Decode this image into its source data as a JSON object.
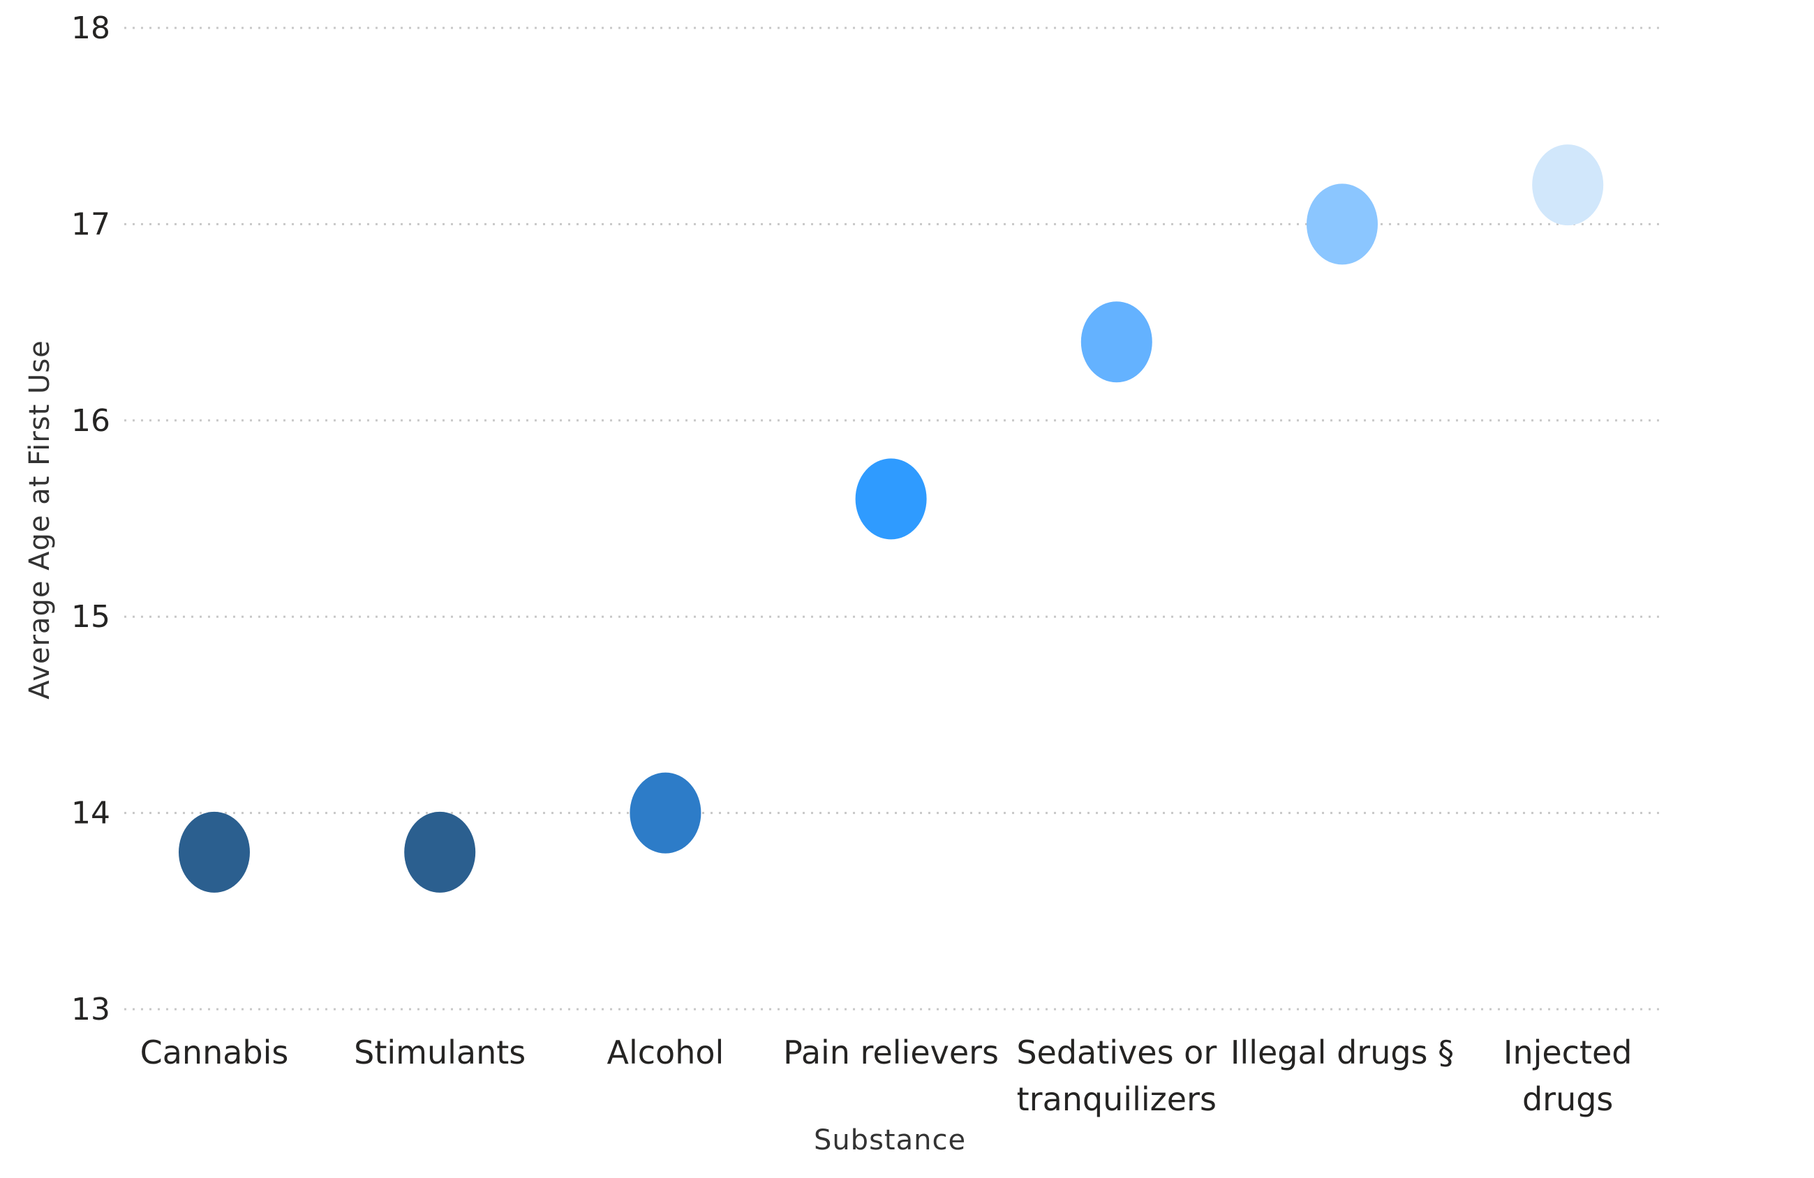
{
  "chart_data": {
    "type": "scatter",
    "xlabel": "Substance",
    "ylabel": "Average Age at First Use",
    "ylim": [
      13,
      18
    ],
    "yticks": [
      "13",
      "14",
      "15",
      "16",
      "17",
      "18"
    ],
    "grid": true,
    "categories": [
      [
        "Cannabis"
      ],
      [
        "Stimulants"
      ],
      [
        "Alcohol"
      ],
      [
        "Pain relievers"
      ],
      [
        "Sedatives or",
        "tranquilizers"
      ],
      [
        "Illegal drugs §"
      ],
      [
        "Injected",
        "drugs"
      ]
    ],
    "values": [
      13.8,
      13.8,
      14.0,
      15.6,
      16.4,
      17.0,
      17.2
    ],
    "colors": [
      "#2b5f8f",
      "#2b5f8f",
      "#2d7cc8",
      "#2f9bff",
      "#64b2ff",
      "#8bc6ff",
      "#d1e7fb"
    ]
  }
}
